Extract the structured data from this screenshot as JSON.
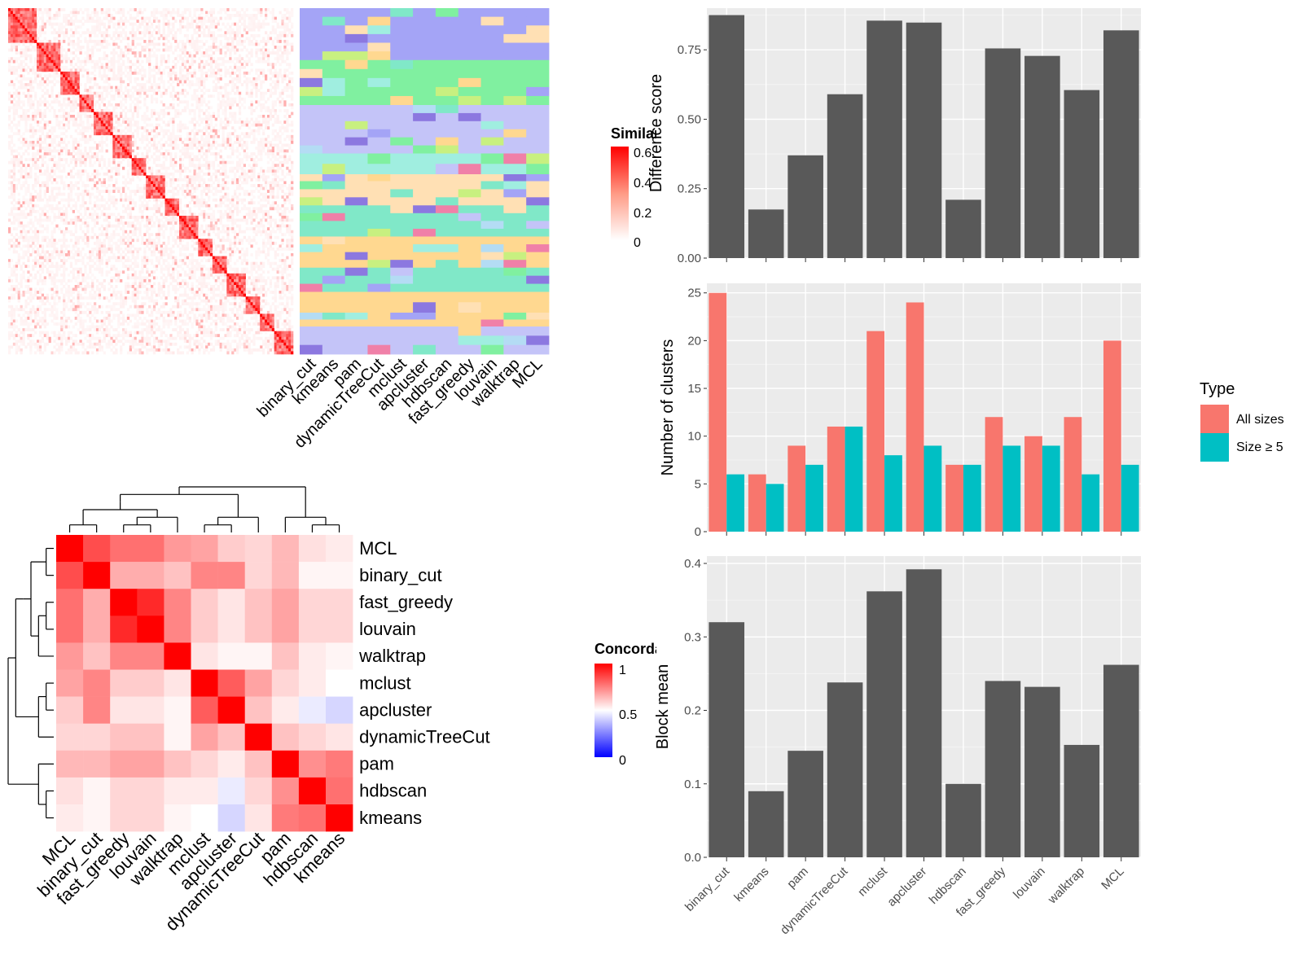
{
  "methods": [
    "binary_cut",
    "kmeans",
    "pam",
    "dynamicTreeCut",
    "mclust",
    "apcluster",
    "hdbscan",
    "fast_greedy",
    "louvain",
    "walktrap",
    "MCL"
  ],
  "similarity_heatmap": {
    "legend_title": "Similarity",
    "legend_ticks": [
      "0.6",
      "0.4",
      "0.2",
      "0"
    ],
    "color_low": "#ffffff",
    "color_high": "#ff0000"
  },
  "cluster_membership": {
    "column_labels": [
      "binary_cut",
      "kmeans",
      "pam",
      "dynamicTreeCut",
      "mclust",
      "apcluster",
      "hdbscan",
      "fast_greedy",
      "louvain",
      "walktrap",
      "MCL"
    ],
    "palette": [
      "#a4a4f6",
      "#80f0a0",
      "#a0eee0",
      "#ffe0b4",
      "#c4c4f8",
      "#80e8c8",
      "#ffd890",
      "#8c78e0",
      "#f080a8",
      "#c8f080",
      "#b4dcf4"
    ]
  },
  "concordance_heatmap": {
    "legend_title": "Concordance",
    "legend_ticks": [
      "1",
      "0.5",
      "0"
    ],
    "color_low": "#0000ff",
    "color_mid": "#ffffff",
    "color_high": "#ff0000",
    "order": [
      "MCL",
      "binary_cut",
      "fast_greedy",
      "louvain",
      "walktrap",
      "mclust",
      "apcluster",
      "dynamicTreeCut",
      "pam",
      "hdbscan",
      "kmeans"
    ],
    "matrix": [
      [
        1.0,
        0.85,
        0.78,
        0.78,
        0.7,
        0.68,
        0.6,
        0.58,
        0.64,
        0.56,
        0.54
      ],
      [
        0.85,
        1.0,
        0.66,
        0.66,
        0.62,
        0.74,
        0.74,
        0.58,
        0.64,
        0.52,
        0.52
      ],
      [
        0.78,
        0.66,
        1.0,
        0.92,
        0.74,
        0.6,
        0.55,
        0.62,
        0.68,
        0.58,
        0.58
      ],
      [
        0.78,
        0.66,
        0.92,
        1.0,
        0.74,
        0.6,
        0.55,
        0.62,
        0.68,
        0.58,
        0.58
      ],
      [
        0.7,
        0.62,
        0.74,
        0.74,
        1.0,
        0.55,
        0.52,
        0.52,
        0.62,
        0.54,
        0.52
      ],
      [
        0.68,
        0.74,
        0.6,
        0.6,
        0.55,
        1.0,
        0.82,
        0.68,
        0.58,
        0.54,
        0.5
      ],
      [
        0.6,
        0.74,
        0.55,
        0.55,
        0.52,
        0.82,
        1.0,
        0.62,
        0.54,
        0.46,
        0.42
      ],
      [
        0.58,
        0.58,
        0.62,
        0.62,
        0.52,
        0.68,
        0.62,
        1.0,
        0.62,
        0.58,
        0.55
      ],
      [
        0.64,
        0.64,
        0.68,
        0.68,
        0.62,
        0.58,
        0.54,
        0.62,
        1.0,
        0.72,
        0.76
      ],
      [
        0.56,
        0.52,
        0.58,
        0.58,
        0.54,
        0.54,
        0.46,
        0.58,
        0.72,
        1.0,
        0.78
      ],
      [
        0.54,
        0.52,
        0.58,
        0.58,
        0.52,
        0.5,
        0.42,
        0.55,
        0.76,
        0.78,
        1.0
      ]
    ]
  },
  "chart_data": [
    {
      "type": "bar",
      "categories": [
        "binary_cut",
        "kmeans",
        "pam",
        "dynamicTreeCut",
        "mclust",
        "apcluster",
        "hdbscan",
        "fast_greedy",
        "louvain",
        "walktrap",
        "MCL"
      ],
      "values": [
        0.875,
        0.175,
        0.37,
        0.59,
        0.855,
        0.848,
        0.21,
        0.755,
        0.728,
        0.605,
        0.82
      ],
      "ylabel": "Difference score",
      "ylim": [
        0,
        0.9
      ],
      "yticks": [
        "0.00",
        "0.25",
        "0.50",
        "0.75"
      ],
      "grid": true,
      "bar_color": "#595959"
    },
    {
      "type": "bar",
      "categories": [
        "binary_cut",
        "kmeans",
        "pam",
        "dynamicTreeCut",
        "mclust",
        "apcluster",
        "hdbscan",
        "fast_greedy",
        "louvain",
        "walktrap",
        "MCL"
      ],
      "series": [
        {
          "name": "All sizes",
          "values": [
            25,
            6,
            9,
            11,
            21,
            24,
            7,
            12,
            10,
            12,
            20
          ],
          "color": "#f8766d"
        },
        {
          "name": "Size ≥ 5",
          "values": [
            6,
            5,
            7,
            11,
            8,
            9,
            7,
            9,
            9,
            6,
            7
          ],
          "color": "#00bfc4"
        }
      ],
      "ylabel": "Number of clusters",
      "ylim": [
        0,
        26
      ],
      "yticks": [
        "0",
        "5",
        "10",
        "15",
        "20",
        "25"
      ],
      "legend_title": "Type",
      "legend_position": "right",
      "grid": true
    },
    {
      "type": "bar",
      "categories": [
        "binary_cut",
        "kmeans",
        "pam",
        "dynamicTreeCut",
        "mclust",
        "apcluster",
        "hdbscan",
        "fast_greedy",
        "louvain",
        "walktrap",
        "MCL"
      ],
      "values": [
        0.32,
        0.09,
        0.145,
        0.238,
        0.362,
        0.392,
        0.1,
        0.24,
        0.232,
        0.153,
        0.262
      ],
      "ylabel": "Block mean",
      "ylim": [
        0,
        0.41
      ],
      "yticks": [
        "0.0",
        "0.1",
        "0.2",
        "0.3",
        "0.4"
      ],
      "grid": true,
      "bar_color": "#595959"
    }
  ]
}
